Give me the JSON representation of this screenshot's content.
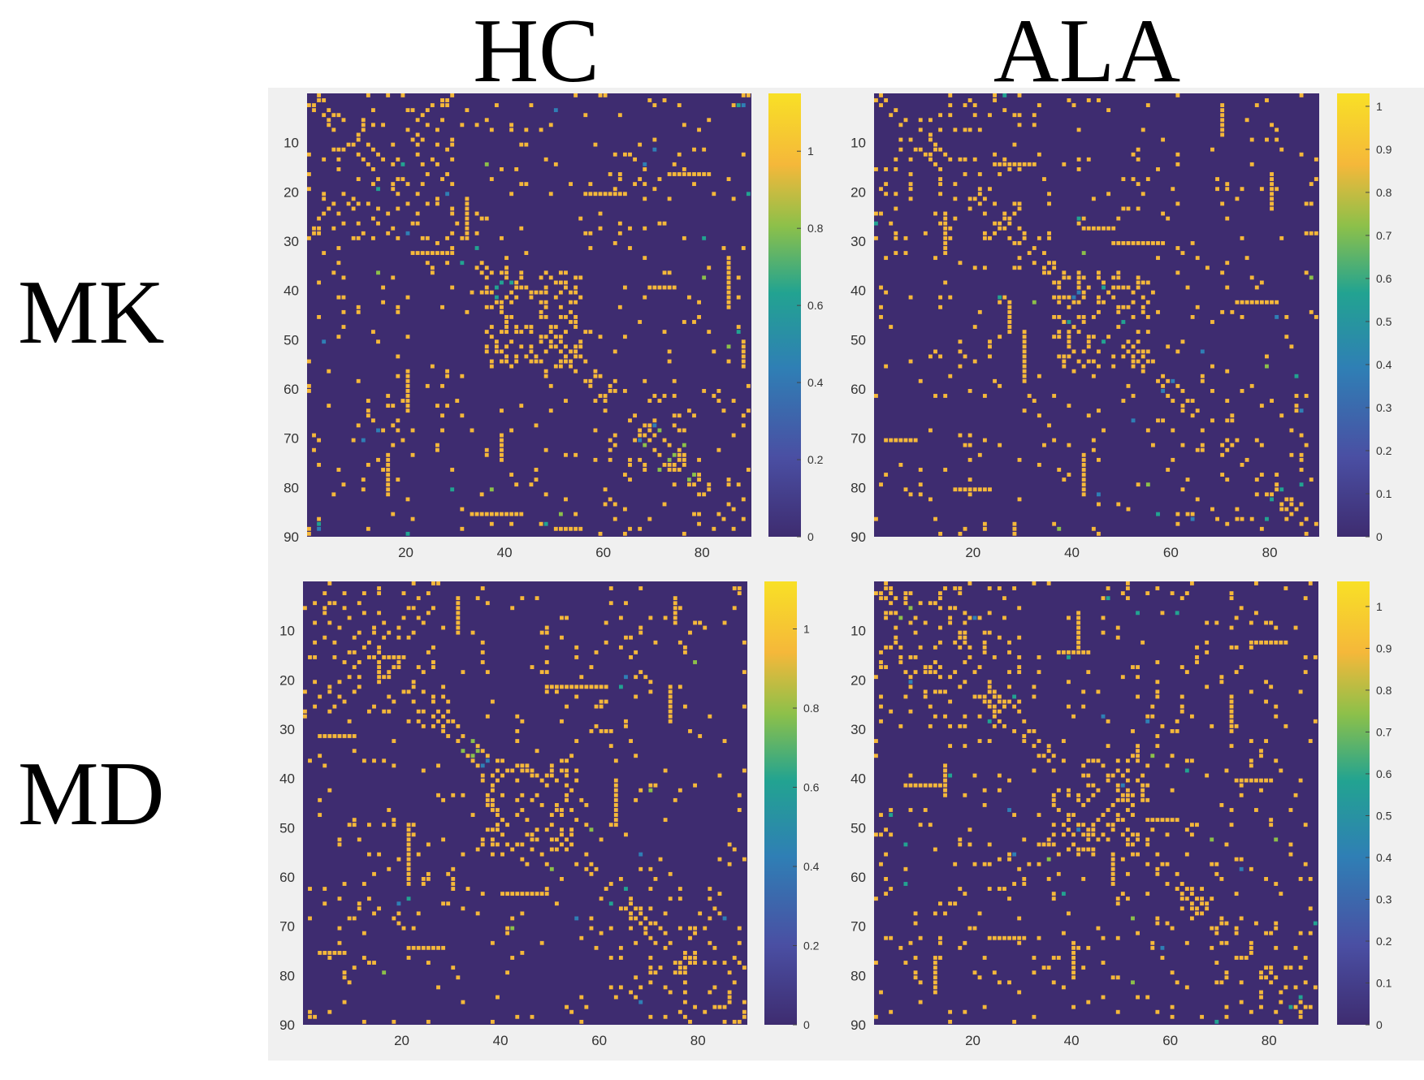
{
  "figure": {
    "column_labels": [
      "HC",
      "ALA"
    ],
    "row_labels": [
      "MK",
      "MD"
    ]
  },
  "chart_data": [
    {
      "type": "heatmap",
      "panel": "MK-HC",
      "x_ticks": [
        "20",
        "40",
        "60",
        "80"
      ],
      "y_ticks": [
        "10",
        "20",
        "30",
        "40",
        "50",
        "60",
        "70",
        "80",
        "90"
      ],
      "matrix_size": 90,
      "colorbar_ticks": [
        "0",
        "0.2",
        "0.4",
        "0.6",
        "0.8",
        "1"
      ],
      "clim": [
        0,
        1.15
      ],
      "colormap": [
        "#3e2c70",
        "#4a4fa3",
        "#2f7fb5",
        "#22a391",
        "#8cc04a",
        "#f5b83a",
        "#f8e026"
      ]
    },
    {
      "type": "heatmap",
      "panel": "MK-ALA",
      "x_ticks": [
        "20",
        "40",
        "60",
        "80"
      ],
      "y_ticks": [
        "10",
        "20",
        "30",
        "40",
        "50",
        "60",
        "70",
        "80",
        "90"
      ],
      "matrix_size": 90,
      "colorbar_ticks": [
        "0",
        "0.1",
        "0.2",
        "0.3",
        "0.4",
        "0.5",
        "0.6",
        "0.7",
        "0.8",
        "0.9",
        "1"
      ],
      "clim": [
        0,
        1.03
      ],
      "colormap": [
        "#3e2c70",
        "#4a4fa3",
        "#2f7fb5",
        "#22a391",
        "#8cc04a",
        "#f5b83a",
        "#f8e026"
      ]
    },
    {
      "type": "heatmap",
      "panel": "MD-HC",
      "x_ticks": [
        "20",
        "40",
        "60",
        "80"
      ],
      "y_ticks": [
        "10",
        "20",
        "30",
        "40",
        "50",
        "60",
        "70",
        "80",
        "90"
      ],
      "matrix_size": 90,
      "colorbar_ticks": [
        "0",
        "0.2",
        "0.4",
        "0.6",
        "0.8",
        "1"
      ],
      "clim": [
        0,
        1.12
      ],
      "colormap": [
        "#3e2c70",
        "#4a4fa3",
        "#2f7fb5",
        "#22a391",
        "#8cc04a",
        "#f5b83a",
        "#f8e026"
      ]
    },
    {
      "type": "heatmap",
      "panel": "MD-ALA",
      "x_ticks": [
        "20",
        "40",
        "60",
        "80"
      ],
      "y_ticks": [
        "10",
        "20",
        "30",
        "40",
        "50",
        "60",
        "70",
        "80",
        "90"
      ],
      "matrix_size": 90,
      "colorbar_ticks": [
        "0",
        "0.1",
        "0.2",
        "0.3",
        "0.4",
        "0.5",
        "0.6",
        "0.7",
        "0.8",
        "0.9",
        "1"
      ],
      "clim": [
        0,
        1.06
      ],
      "colormap": [
        "#3e2c70",
        "#4a4fa3",
        "#2f7fb5",
        "#22a391",
        "#8cc04a",
        "#f5b83a",
        "#f8e026"
      ]
    }
  ]
}
